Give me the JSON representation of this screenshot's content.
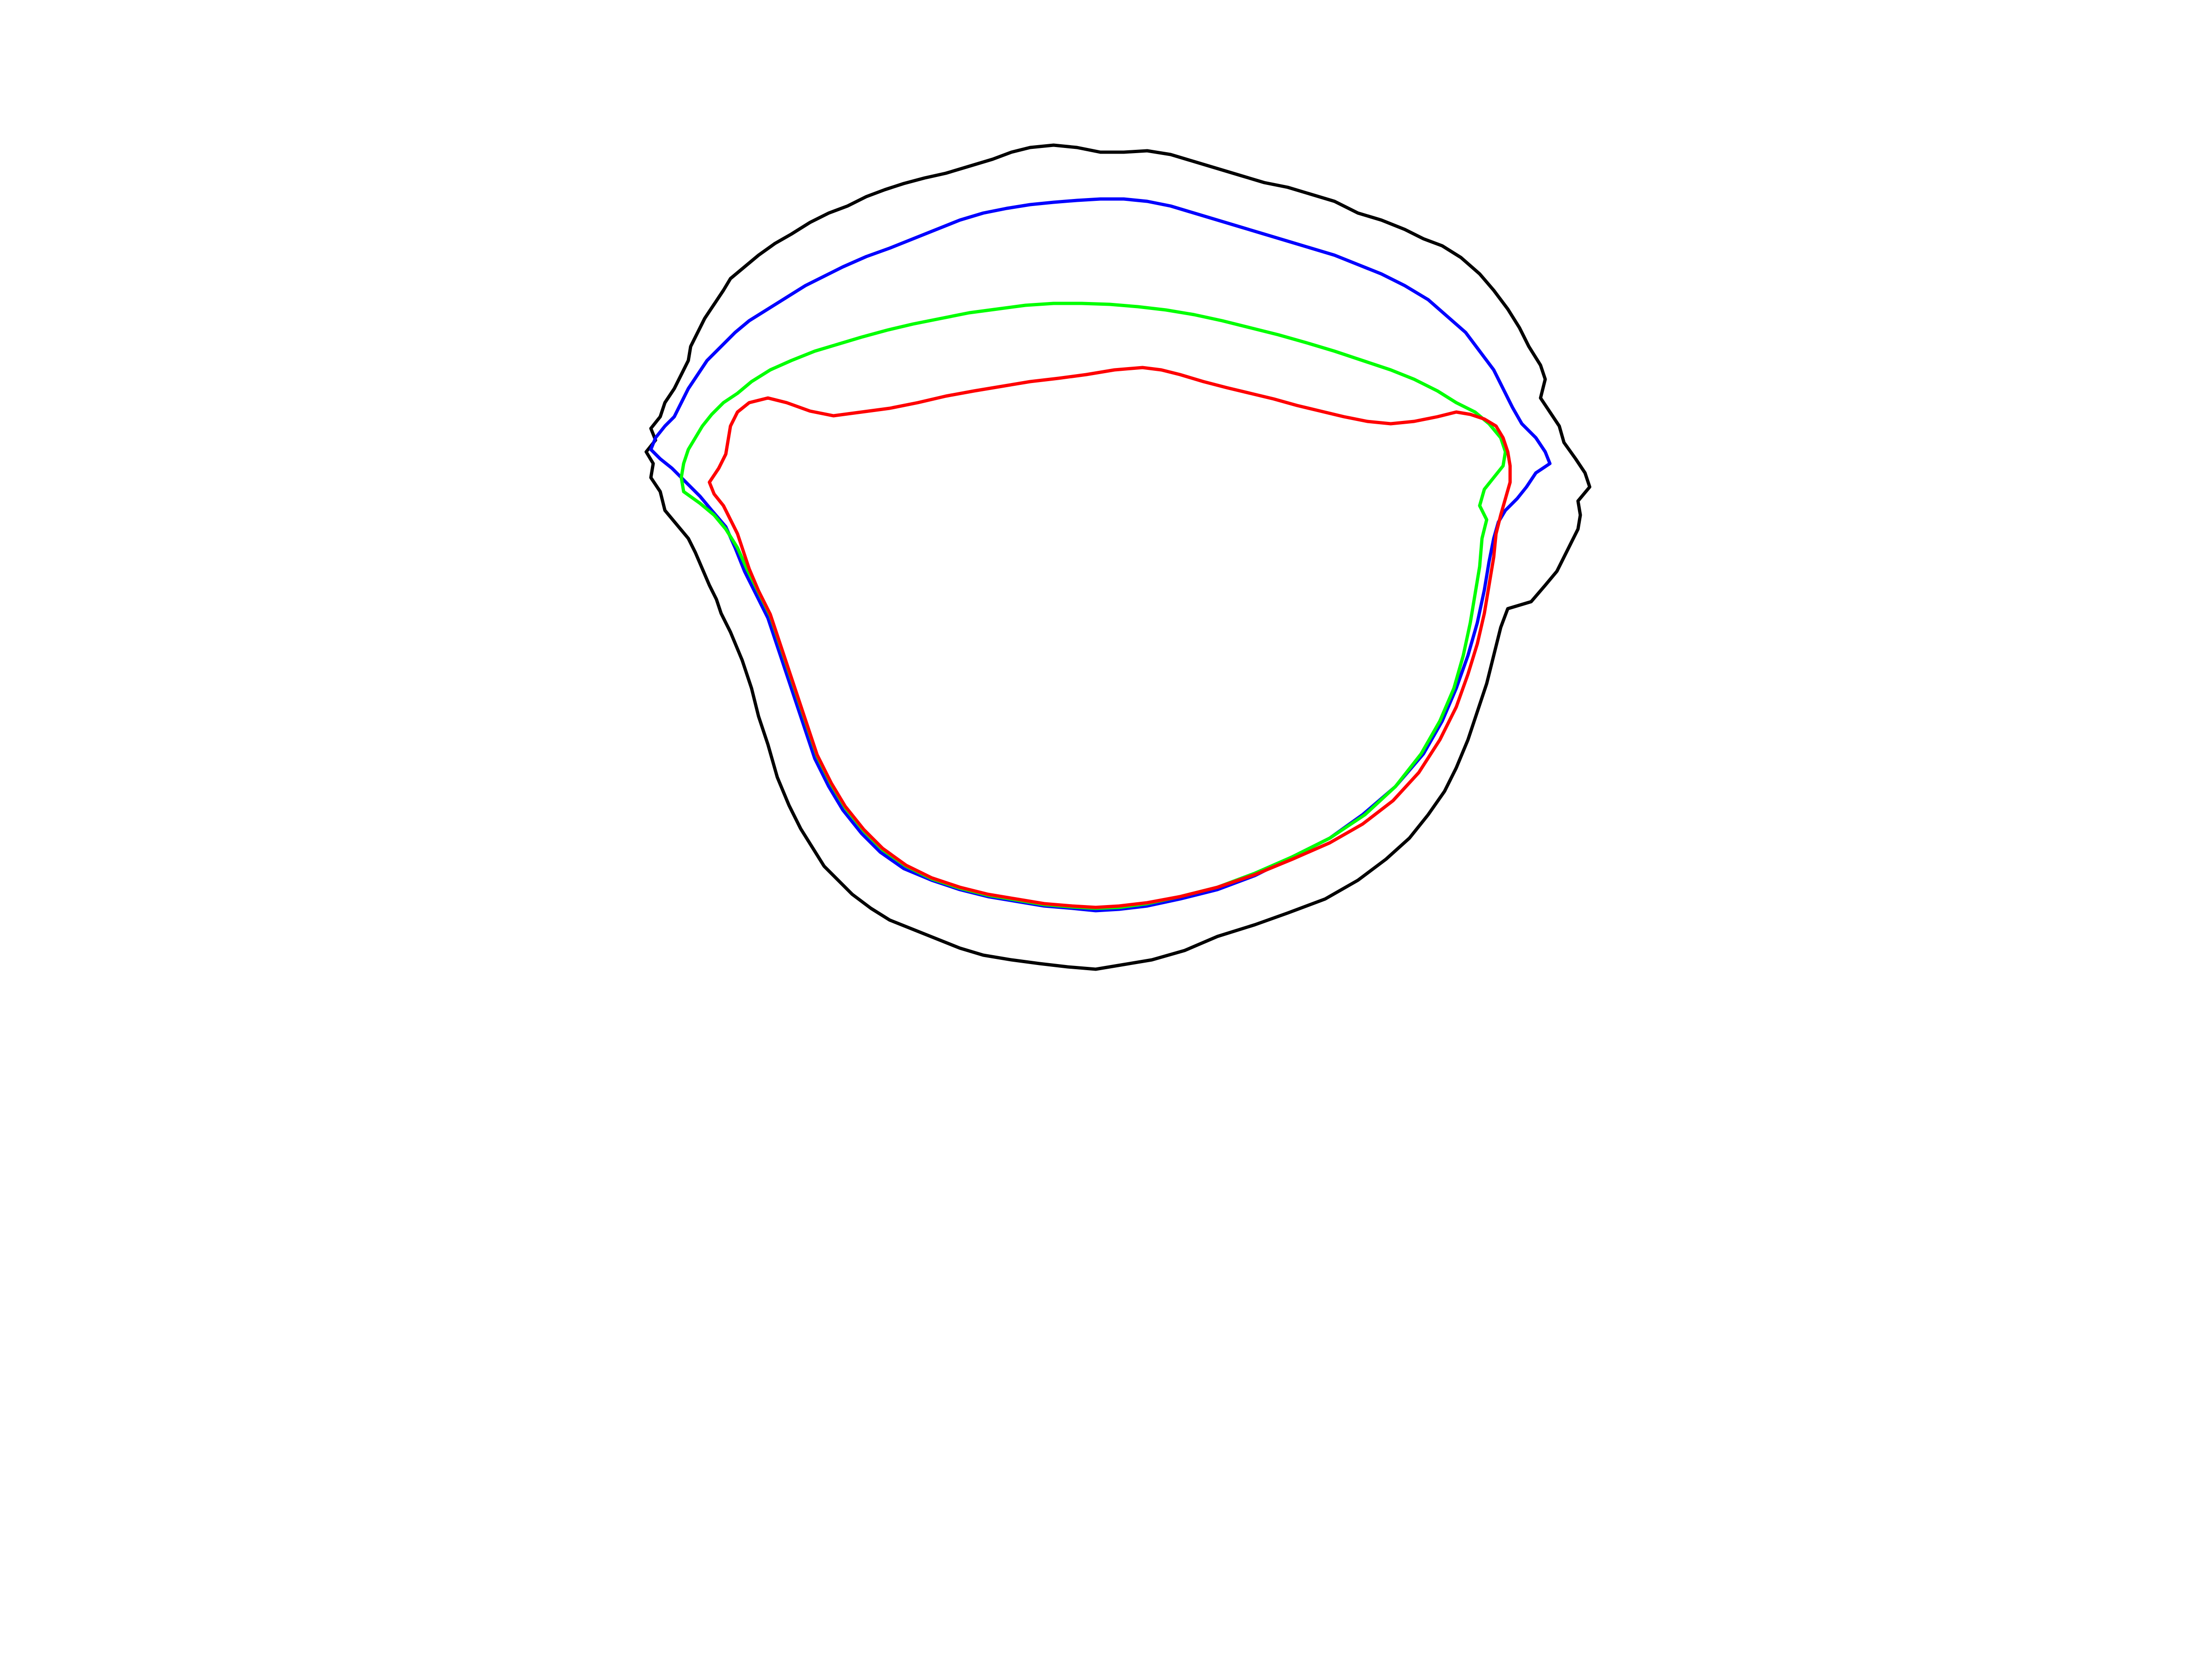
{
  "figure": {
    "background": "#ffffff",
    "contours": [
      {
        "id": "outer-black",
        "color": "#000000"
      },
      {
        "id": "blue",
        "color": "#0000ff"
      },
      {
        "id": "green",
        "color": "#00ff00"
      },
      {
        "id": "red",
        "color": "#ff0000"
      }
    ]
  }
}
